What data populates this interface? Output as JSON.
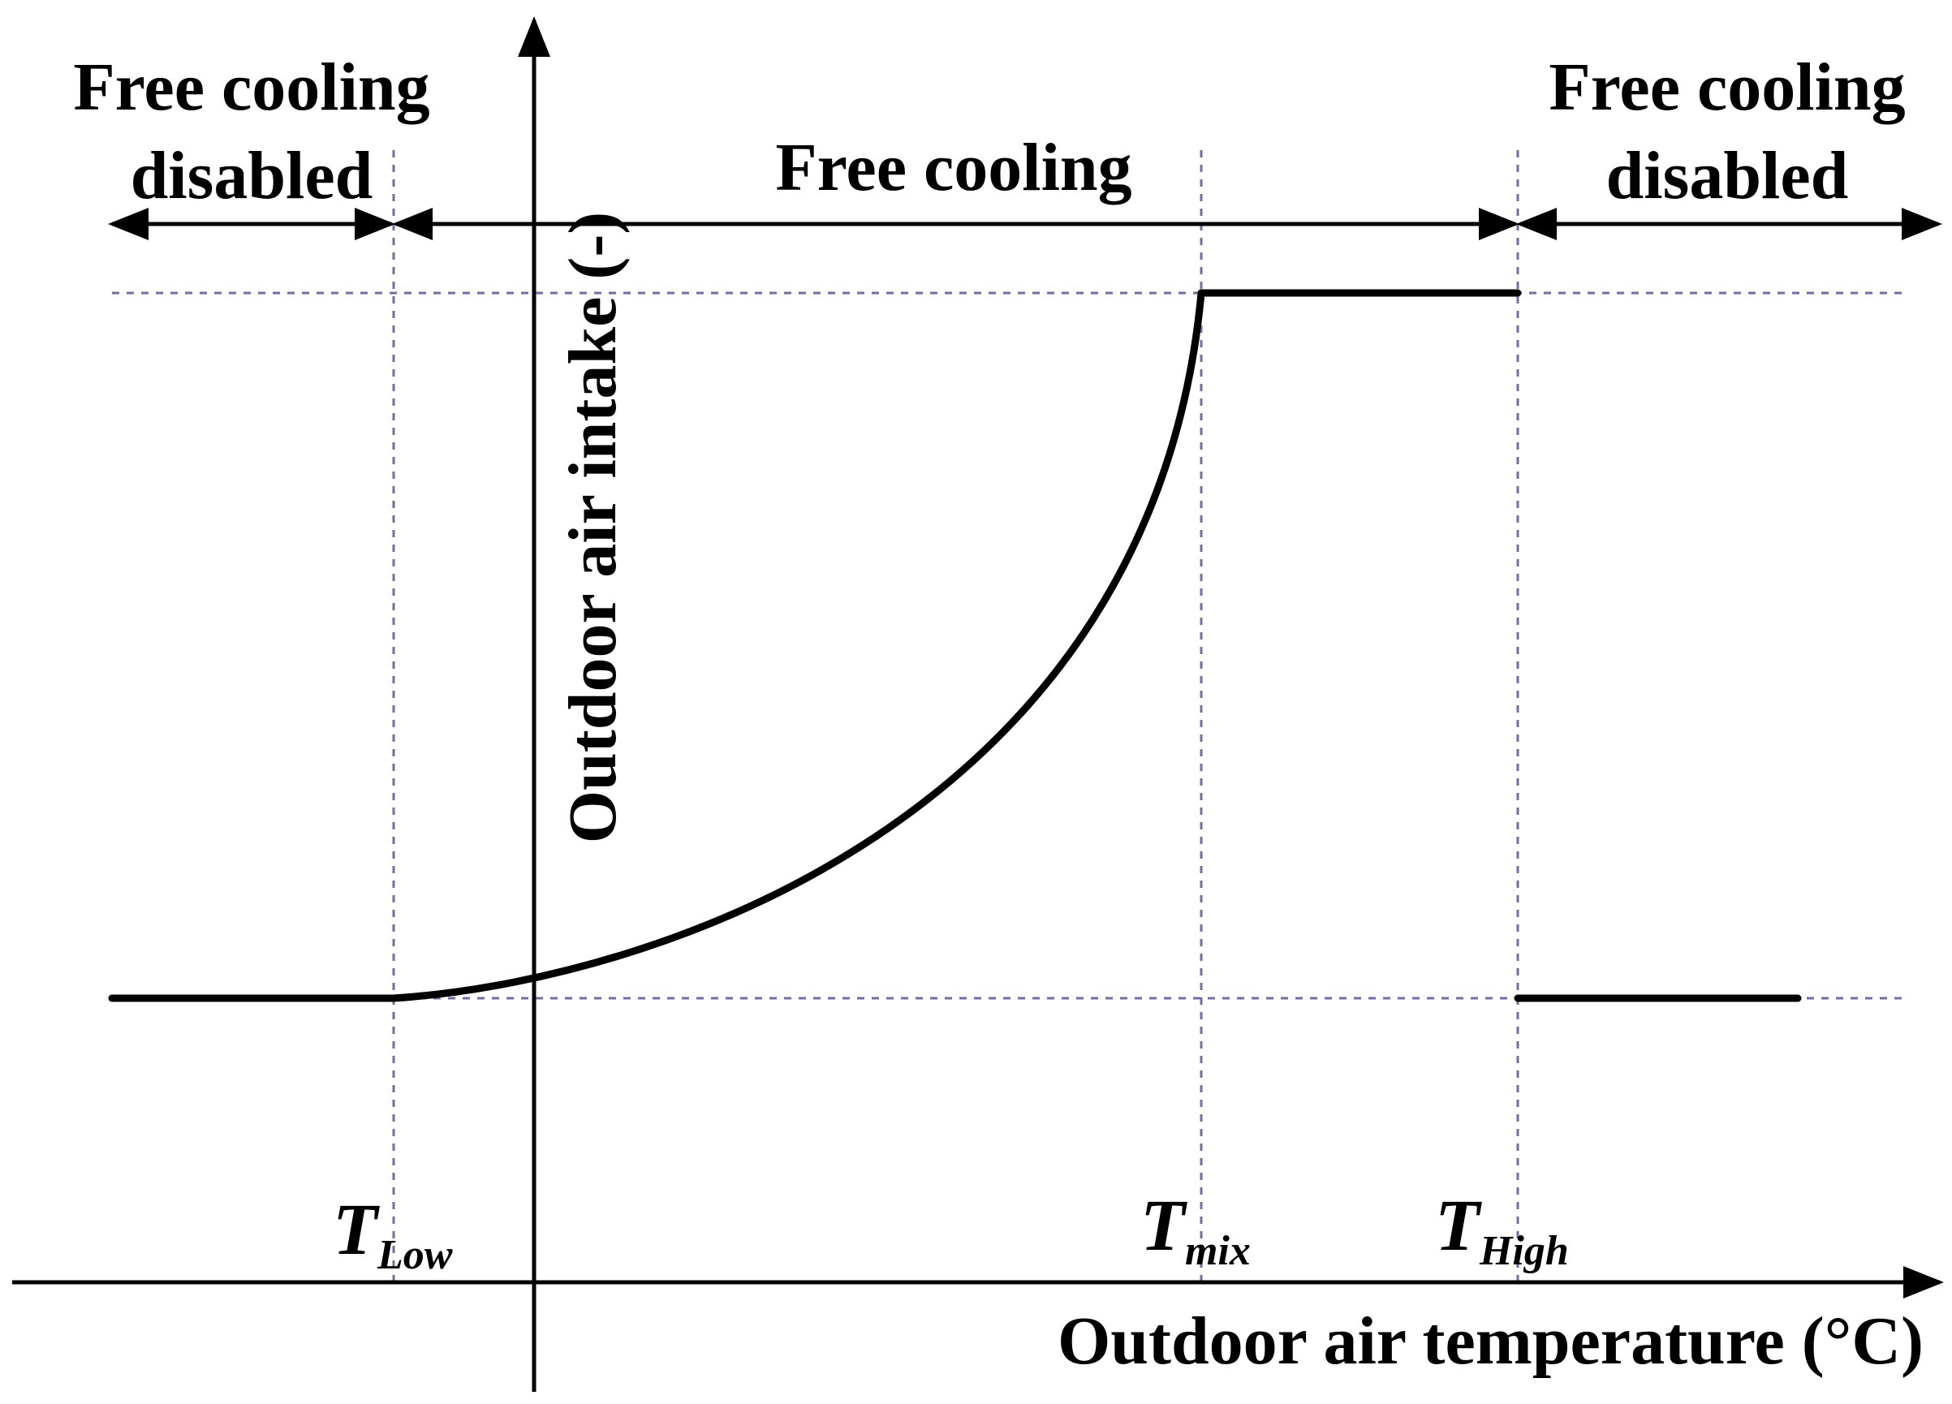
{
  "zones": {
    "left_line1": "Free cooling",
    "left_line2": "disabled",
    "middle": "Free cooling",
    "right_line1": "Free cooling",
    "right_line2": "disabled"
  },
  "axes": {
    "x_label": "Outdoor air temperature (°C)",
    "y_label": "Outdoor air intake (-)"
  },
  "thresholds": [
    {
      "symbol": "T",
      "subscript": "Low"
    },
    {
      "symbol": "T",
      "subscript": "mix"
    },
    {
      "symbol": "T",
      "subscript": "High"
    }
  ],
  "colors": {
    "curve": "#000000",
    "guide_lines": "#6f6fa8",
    "axes": "#000000"
  }
}
